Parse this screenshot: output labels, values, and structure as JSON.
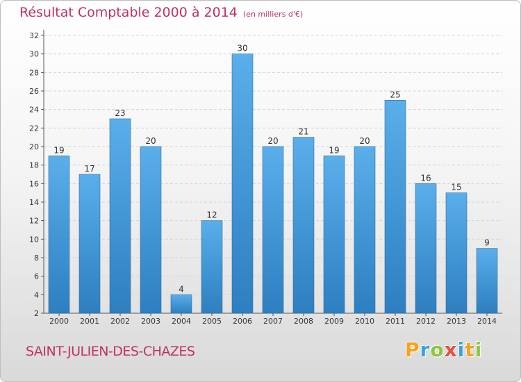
{
  "title": "Résultat Comptable 2000 à 2014",
  "unit": "(en milliers d'€)",
  "commune": "SAINT-JULIEN-DES-CHAZES",
  "logo": {
    "letters": [
      "P",
      "r",
      "o",
      "x",
      "i",
      "t",
      "i"
    ],
    "colors": [
      "#f7a21b",
      "#3aa3dc",
      "#8cc63f",
      "#e94e3d",
      "#3aa3dc",
      "#f7a21b",
      "#8cc63f"
    ]
  },
  "colors": {
    "title": "#c0325b",
    "bar_top": "#5aaeea",
    "bar_bottom": "#2d7fc0"
  },
  "chart_data": {
    "type": "bar",
    "title": "Résultat Comptable 2000 à 2014",
    "categories": [
      "2000",
      "2001",
      "2002",
      "2003",
      "2004",
      "2005",
      "2006",
      "2007",
      "2008",
      "2009",
      "2010",
      "2011",
      "2012",
      "2013",
      "2014"
    ],
    "values": [
      19,
      17,
      23,
      20,
      4,
      12,
      30,
      20,
      21,
      19,
      20,
      25,
      16,
      15,
      9
    ],
    "yticks": [
      "2",
      "4",
      "6",
      "8",
      "10",
      "12",
      "14",
      "16",
      "18",
      "20",
      "22",
      "24",
      "26",
      "28",
      "30",
      "32"
    ],
    "ylim": [
      2,
      32
    ],
    "grid": true
  }
}
